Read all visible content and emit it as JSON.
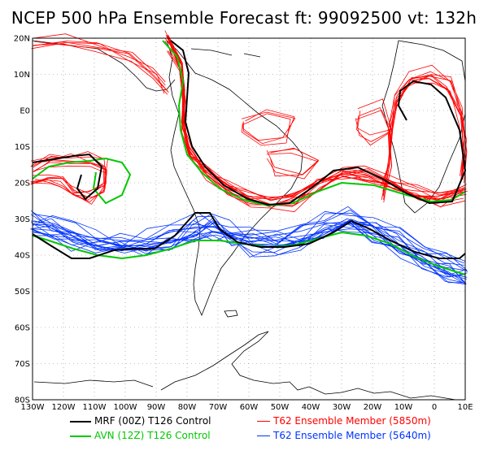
{
  "title": "NCEP 500 hPa Ensemble Forecast  ft: 99092500 vt: 132h",
  "lat_labels": [
    "20N",
    "10N",
    "E0",
    "10S",
    "20S",
    "30S",
    "40S",
    "50S",
    "60S",
    "70S",
    "80S"
  ],
  "lon_labels": [
    "130W",
    "120W",
    "110W",
    "100W",
    "90W",
    "80W",
    "70W",
    "60W",
    "50W",
    "40W",
    "30W",
    "20W",
    "10W",
    "0",
    "10E"
  ],
  "colors": {
    "mrf": "#000000",
    "avn": "#00c800",
    "ens_5850": "#ff0000",
    "ens_5640": "#0033ff",
    "coast": "#000000",
    "grid": "#888888"
  },
  "legend": {
    "mrf": "MRF (00Z) T126 Control",
    "avn": "AVN (12Z) T126 Control",
    "ens_5850": "T62 Ensemble Member (5850m)",
    "ens_5640": "T62 Ensemble Member (5640m)"
  },
  "map": {
    "projection": "lat-lon",
    "lon_range": [
      "130W",
      "10E"
    ],
    "lat_range": [
      "80S",
      "20N"
    ],
    "grid": "dotted"
  }
}
